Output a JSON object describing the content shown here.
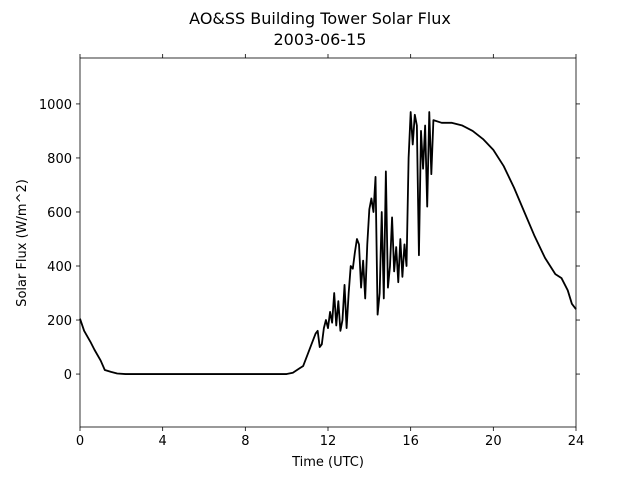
{
  "chart_data": {
    "type": "line",
    "title": "AO&SS Building Tower Solar Flux",
    "subtitle": "2003-06-15",
    "x_label": "Time (UTC)",
    "y_label": "Solar Flux (W/m^2)",
    "color": "#000000",
    "xlim": [
      0,
      24
    ],
    "xticks": [
      0,
      4,
      8,
      12,
      16,
      20,
      24
    ],
    "ylim": [
      -196,
      1170
    ],
    "yticks": [
      0,
      200,
      400,
      600,
      800,
      1000
    ],
    "x": [
      0,
      0.2,
      0.5,
      0.7,
      1.0,
      1.2,
      1.5,
      1.8,
      2.2,
      4,
      8,
      10,
      10.3,
      10.6,
      10.8,
      11,
      11.2,
      11.4,
      11.5,
      11.6,
      11.7,
      11.8,
      11.9,
      12.0,
      12.1,
      12.2,
      12.3,
      12.4,
      12.5,
      12.6,
      12.7,
      12.8,
      12.9,
      13.0,
      13.1,
      13.2,
      13.3,
      13.4,
      13.5,
      13.6,
      13.7,
      13.8,
      13.9,
      14.0,
      14.1,
      14.2,
      14.3,
      14.4,
      14.5,
      14.6,
      14.7,
      14.8,
      14.9,
      15.0,
      15.1,
      15.2,
      15.3,
      15.4,
      15.5,
      15.6,
      15.7,
      15.8,
      15.9,
      16.0,
      16.1,
      16.2,
      16.3,
      16.4,
      16.5,
      16.6,
      16.7,
      16.8,
      16.9,
      17.0,
      17.1,
      17.5,
      18,
      18.5,
      19,
      19.5,
      20,
      20.5,
      21,
      21.5,
      22,
      22.5,
      23,
      23.3,
      23.6,
      23.8,
      24
    ],
    "values": [
      205,
      160,
      120,
      90,
      50,
      15,
      8,
      2,
      0,
      0,
      0,
      0,
      5,
      20,
      30,
      70,
      110,
      150,
      160,
      100,
      110,
      170,
      200,
      170,
      230,
      190,
      300,
      180,
      270,
      160,
      200,
      330,
      170,
      300,
      400,
      390,
      450,
      500,
      480,
      320,
      420,
      280,
      480,
      610,
      650,
      600,
      730,
      220,
      300,
      600,
      280,
      750,
      320,
      400,
      580,
      380,
      470,
      340,
      500,
      360,
      480,
      400,
      800,
      970,
      850,
      960,
      920,
      440,
      900,
      760,
      920,
      620,
      970,
      740,
      940,
      930,
      930,
      920,
      900,
      870,
      830,
      770,
      690,
      600,
      510,
      430,
      370,
      355,
      310,
      260,
      240
    ]
  }
}
